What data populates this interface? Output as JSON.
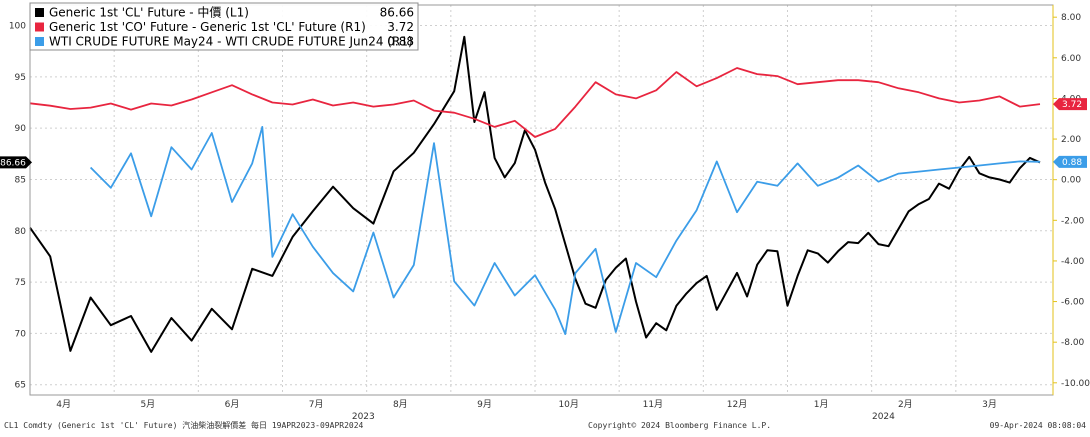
{
  "chart_data": {
    "type": "line",
    "legend": {
      "placement": "top-left",
      "entries": [
        {
          "label": "Generic 1st 'CL' Future - 中價 (L1)",
          "value": "86.66",
          "color": "#000000"
        },
        {
          "label": "Generic 1st 'CO' Future - Generic 1st 'CL' Future (R1)",
          "value": "3.72",
          "color": "#e8253f"
        },
        {
          "label": "WTI CRUDE FUTURE May24 - WTI CRUDE FUTURE Jun24 (R1)",
          "value": "0.88",
          "color": "#3b9de8"
        }
      ]
    },
    "x_axis": {
      "months": [
        "4月",
        "5月",
        "6月",
        "7月",
        "8月",
        "9月",
        "10月",
        "11月",
        "12月",
        "1月",
        "2月",
        "3月"
      ],
      "years": [
        "2023",
        "2024"
      ],
      "range": [
        "2023-04-19",
        "2024-04-09"
      ]
    },
    "left_axis": {
      "ticks": [
        65,
        70,
        75,
        80,
        85,
        90,
        95,
        100
      ],
      "range": [
        64,
        102
      ],
      "last_value_label": "86.66"
    },
    "right_axis": {
      "ticks": [
        "8.00",
        "6.00",
        "4.00",
        "2.00",
        "0.00",
        "-2.00",
        "-4.00",
        "-6.00",
        "-8.00",
        "-10.00"
      ],
      "range": [
        -10.6,
        8.6
      ],
      "last_value_labels": [
        "3.72",
        "0.88"
      ]
    },
    "grid": true,
    "series": [
      {
        "name": "Generic 1st 'CL' Future - 中價 (L1)",
        "axis": "left",
        "color": "#000000",
        "x": [
          0.0,
          0.02,
          0.04,
          0.06,
          0.08,
          0.1,
          0.12,
          0.14,
          0.16,
          0.18,
          0.2,
          0.22,
          0.24,
          0.26,
          0.28,
          0.3,
          0.32,
          0.34,
          0.36,
          0.38,
          0.4,
          0.42,
          0.43,
          0.44,
          0.45,
          0.46,
          0.47,
          0.48,
          0.49,
          0.5,
          0.51,
          0.52,
          0.53,
          0.54,
          0.55,
          0.56,
          0.57,
          0.58,
          0.59,
          0.6,
          0.61,
          0.62,
          0.63,
          0.64,
          0.65,
          0.66,
          0.67,
          0.68,
          0.69,
          0.7,
          0.71,
          0.72,
          0.73,
          0.74,
          0.75,
          0.76,
          0.77,
          0.78,
          0.79,
          0.8,
          0.81,
          0.82,
          0.83,
          0.84,
          0.85,
          0.86,
          0.87,
          0.88,
          0.89,
          0.9,
          0.91,
          0.92,
          0.93,
          0.94,
          0.95,
          0.96,
          0.97,
          0.98,
          0.99,
          1.0
        ],
        "y": [
          80.3,
          77.5,
          68.3,
          73.5,
          70.8,
          71.7,
          68.2,
          71.5,
          69.3,
          72.4,
          70.4,
          76.3,
          75.6,
          79.4,
          81.9,
          84.3,
          82.2,
          80.7,
          85.8,
          87.6,
          90.4,
          93.6,
          98.9,
          90.6,
          93.5,
          87.1,
          85.2,
          86.6,
          89.8,
          87.9,
          84.7,
          82.1,
          78.7,
          75.3,
          72.9,
          72.5,
          75.2,
          76.4,
          77.3,
          73.1,
          69.6,
          71.0,
          70.3,
          72.7,
          73.9,
          74.9,
          75.6,
          72.3,
          74.1,
          75.9,
          73.6,
          76.7,
          78.1,
          78.0,
          72.7,
          75.6,
          78.1,
          77.8,
          76.9,
          78.0,
          78.9,
          78.8,
          79.8,
          78.7,
          78.5,
          80.2,
          81.9,
          82.6,
          83.1,
          84.6,
          84.1,
          85.9,
          87.2,
          85.6,
          85.2,
          85.0,
          84.7,
          86.1,
          87.1,
          86.66
        ]
      },
      {
        "name": "Generic 1st 'CO' Future - Generic 1st 'CL' Future (R1)",
        "axis": "right",
        "color": "#e8253f",
        "x": [
          0.0,
          0.02,
          0.04,
          0.06,
          0.08,
          0.1,
          0.12,
          0.14,
          0.16,
          0.18,
          0.2,
          0.22,
          0.24,
          0.26,
          0.28,
          0.3,
          0.32,
          0.34,
          0.36,
          0.38,
          0.4,
          0.42,
          0.44,
          0.46,
          0.48,
          0.5,
          0.52,
          0.54,
          0.56,
          0.58,
          0.6,
          0.62,
          0.64,
          0.66,
          0.68,
          0.7,
          0.72,
          0.74,
          0.76,
          0.78,
          0.8,
          0.82,
          0.84,
          0.86,
          0.88,
          0.9,
          0.92,
          0.94,
          0.96,
          0.98,
          1.0
        ],
        "y": [
          3.76,
          3.64,
          3.48,
          3.55,
          3.75,
          3.45,
          3.75,
          3.65,
          3.95,
          4.3,
          4.65,
          4.2,
          3.8,
          3.7,
          3.95,
          3.65,
          3.8,
          3.6,
          3.7,
          3.9,
          3.4,
          3.3,
          3.0,
          2.6,
          2.9,
          2.1,
          2.5,
          3.6,
          4.8,
          4.2,
          4.0,
          4.4,
          5.3,
          4.6,
          5.0,
          5.5,
          5.2,
          5.1,
          4.7,
          4.8,
          4.9,
          4.9,
          4.8,
          4.5,
          4.3,
          4.0,
          3.8,
          3.9,
          4.1,
          3.6,
          3.72
        ]
      },
      {
        "name": "WTI CRUDE FUTURE May24 - WTI CRUDE FUTURE Jun24 (R1)",
        "axis": "right",
        "color": "#3b9de8",
        "x": [
          0.06,
          0.08,
          0.1,
          0.12,
          0.14,
          0.16,
          0.18,
          0.2,
          0.22,
          0.23,
          0.24,
          0.26,
          0.28,
          0.3,
          0.32,
          0.34,
          0.36,
          0.38,
          0.4,
          0.42,
          0.44,
          0.46,
          0.48,
          0.5,
          0.52,
          0.53,
          0.54,
          0.56,
          0.58,
          0.6,
          0.62,
          0.64,
          0.66,
          0.68,
          0.7,
          0.72,
          0.74,
          0.76,
          0.78,
          0.8,
          0.82,
          0.84,
          0.86,
          0.88,
          0.9,
          0.92,
          0.94,
          0.96,
          0.98,
          1.0
        ],
        "y": [
          0.6,
          -0.4,
          1.3,
          -1.8,
          1.6,
          0.5,
          2.3,
          -1.1,
          0.8,
          2.6,
          -3.8,
          -1.7,
          -3.3,
          -4.6,
          -5.5,
          -2.6,
          -5.8,
          -4.2,
          1.8,
          -5.0,
          -6.2,
          -4.1,
          -5.7,
          -4.7,
          -6.4,
          -7.6,
          -4.6,
          -3.4,
          -7.5,
          -4.1,
          -4.8,
          -3.0,
          -1.5,
          0.9,
          -1.6,
          -0.1,
          -0.3,
          0.8,
          -0.3,
          0.1,
          0.7,
          -0.1,
          0.3,
          0.4,
          0.5,
          0.6,
          0.7,
          0.8,
          0.9,
          0.88
        ]
      }
    ]
  },
  "footer": {
    "left": "CL1 Comdty (Generic 1st 'CL' Future) 汽油柴油裂解價差  每日 19APR2023-09APR2024",
    "center": "Copyright© 2024 Bloomberg Finance L.P.",
    "right": "09-Apr-2024 08:08:04"
  }
}
